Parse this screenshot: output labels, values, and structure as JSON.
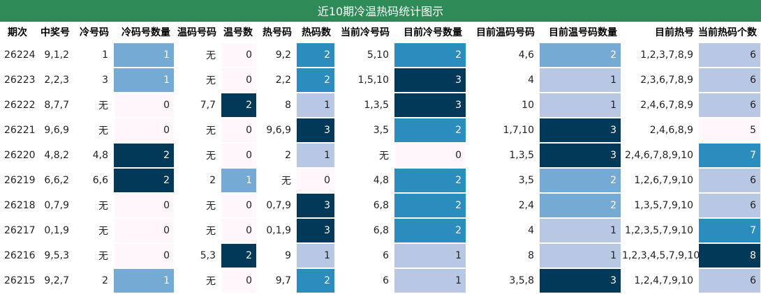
{
  "title": "近10期冷温热码统计图示",
  "headers": [
    "期次",
    "中奖号",
    "冷号码",
    "冷码号数量",
    "温码号码",
    "温号数",
    "热号码",
    "热码数",
    "当前冷号码",
    "目前冷号数量",
    "目前温码号码",
    "目前温号码数量",
    "目前热号",
    "当前热码个数"
  ],
  "rows": [
    [
      "26224",
      "9,1,2",
      "1",
      "1",
      "无",
      "0",
      "9,2",
      "2",
      "5,10",
      "2",
      "4,6",
      "2",
      "1,2,3,7,8,9",
      "6"
    ],
    [
      "26223",
      "2,2,3",
      "3",
      "1",
      "无",
      "0",
      "2,2",
      "2",
      "1,5,10",
      "3",
      "4",
      "1",
      "2,3,6,7,8,9",
      "6"
    ],
    [
      "26222",
      "8,7,7",
      "无",
      "0",
      "7,7",
      "2",
      "8",
      "1",
      "1,3,5",
      "3",
      "10",
      "1",
      "2,4,6,7,8,9",
      "6"
    ],
    [
      "26221",
      "9,6,9",
      "无",
      "0",
      "无",
      "0",
      "9,6,9",
      "3",
      "3,5",
      "2",
      "1,7,10",
      "3",
      "2,4,6,8,9",
      "5"
    ],
    [
      "26220",
      "4,8,2",
      "4,8",
      "2",
      "无",
      "0",
      "2",
      "1",
      "无",
      "0",
      "1,3,5",
      "3",
      "2,4,6,7,8,9,10",
      "7"
    ],
    [
      "26219",
      "6,6,2",
      "6,6",
      "2",
      "2",
      "1",
      "无",
      "0",
      "4,8",
      "2",
      "3,5",
      "2",
      "1,2,6,7,9,10",
      "6"
    ],
    [
      "26218",
      "0,7,9",
      "无",
      "0",
      "无",
      "0",
      "0,7,9",
      "3",
      "6,8",
      "2",
      "2,4",
      "2",
      "1,3,5,7,9,10",
      "6"
    ],
    [
      "26217",
      "0,1,9",
      "无",
      "0",
      "无",
      "0",
      "0,1,9",
      "3",
      "6,8",
      "2",
      "4",
      "1",
      "1,2,3,5,7,9,10",
      "7"
    ],
    [
      "26216",
      "9,5,3",
      "无",
      "0",
      "5,3",
      "2",
      "9",
      "1",
      "6",
      "1",
      "8",
      "1",
      "1,2,3,4,5,7,9,10",
      "8"
    ],
    [
      "26215",
      "9,2,7",
      "2",
      "1",
      "无",
      "0",
      "9,7",
      "2",
      "6",
      "1",
      "3,5,8",
      "3",
      "1,2,4,7,9,10",
      "6"
    ]
  ],
  "heatmap_columns": [
    3,
    5,
    7,
    9,
    11,
    13
  ],
  "colors": {
    "title_bg": "#2e8b57",
    "level_0": "#fff7fb",
    "level_1_light": "#b8c7e3",
    "level_2_mid": "#75aad4",
    "level_2_strong": "#2b8cbe",
    "level_3_dark": "#023858"
  }
}
